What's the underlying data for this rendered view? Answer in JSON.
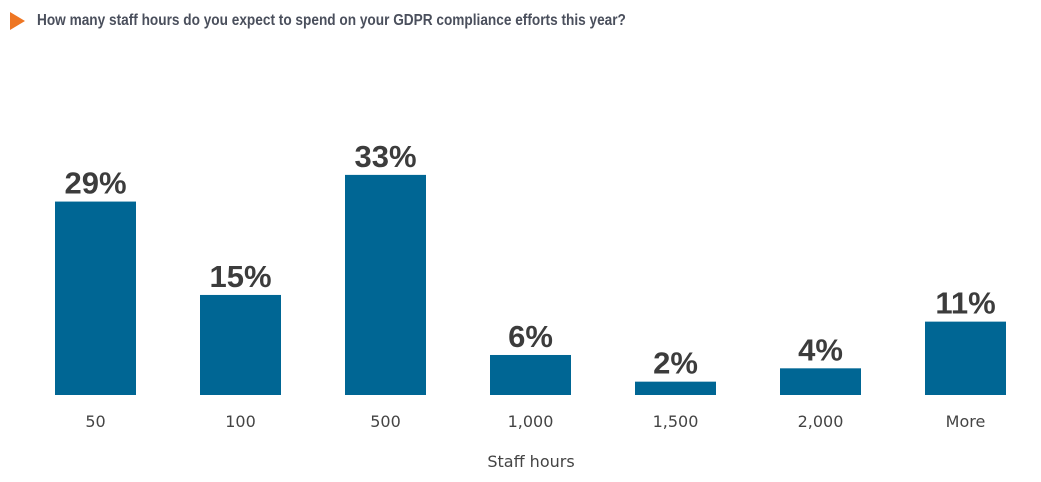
{
  "chart_data": {
    "type": "bar",
    "title": "How many staff hours do you expect to spend on your GDPR compliance efforts this year?",
    "xlabel": "Staff hours",
    "ylabel": "",
    "categories": [
      "50",
      "100",
      "500",
      "1,000",
      "1,500",
      "2,000",
      "More"
    ],
    "values": [
      29,
      15,
      33,
      6,
      2,
      4,
      11
    ],
    "value_labels": [
      "29%",
      "15%",
      "33%",
      "6%",
      "2%",
      "4%",
      "11%"
    ],
    "unit": "%",
    "ylim": [
      0,
      35
    ],
    "grid": false,
    "bar_color": "#006694",
    "accent_color": "#ee7623"
  }
}
